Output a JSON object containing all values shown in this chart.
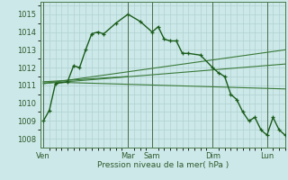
{
  "background_color": "#cce8e8",
  "grid_color": "#aacccc",
  "line_color_main": "#1a5c1a",
  "line_color_trend": "#3a7a3a",
  "xlabel": "Pression niveau de la mer( hPa )",
  "ylim": [
    1007.5,
    1015.7
  ],
  "yticks": [
    1008,
    1009,
    1010,
    1011,
    1012,
    1013,
    1014,
    1015
  ],
  "day_labels": [
    "Ven",
    "Mar",
    "Sam",
    "Dim",
    "Lun"
  ],
  "day_positions": [
    0,
    14,
    18,
    28,
    37
  ],
  "xlim": [
    -0.5,
    40
  ],
  "series1_x": [
    0,
    1,
    2,
    4,
    5,
    6,
    7,
    8,
    9,
    10,
    12,
    14,
    16,
    18,
    19,
    20,
    21,
    22,
    23,
    24,
    26,
    28,
    29,
    30,
    31,
    32,
    33,
    34,
    35,
    36,
    37,
    38,
    39,
    40
  ],
  "series1_y": [
    1009.0,
    1009.6,
    1011.1,
    1011.2,
    1012.1,
    1012.0,
    1013.0,
    1013.9,
    1014.0,
    1013.9,
    1014.5,
    1015.0,
    1014.6,
    1014.0,
    1014.3,
    1013.6,
    1013.5,
    1013.5,
    1012.8,
    1012.8,
    1012.7,
    1012.0,
    1011.7,
    1011.5,
    1010.5,
    1010.2,
    1009.5,
    1009.0,
    1009.2,
    1008.5,
    1008.2,
    1009.2,
    1008.5,
    1008.2
  ],
  "trend1_x": [
    0,
    40
  ],
  "trend1_y": [
    1011.1,
    1013.0
  ],
  "trend2_x": [
    0,
    40
  ],
  "trend2_y": [
    1011.1,
    1012.2
  ],
  "trend3_x": [
    0,
    14
  ],
  "trend3_y": [
    1011.2,
    1011.5
  ],
  "trend4_x": [
    0,
    40
  ],
  "trend4_y": [
    1011.2,
    1010.8
  ],
  "vline_positions": [
    0,
    14,
    18,
    28,
    37
  ]
}
